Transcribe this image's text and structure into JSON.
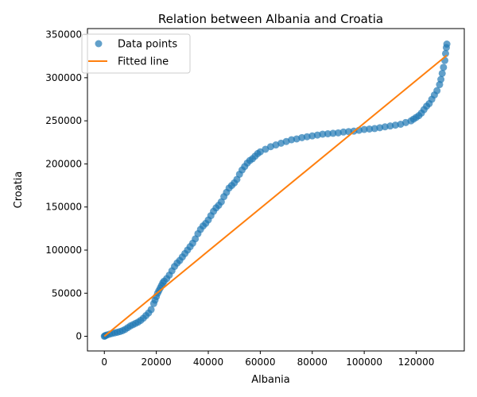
{
  "chart_data": {
    "type": "scatter",
    "title": "Relation between Albania and Croatia",
    "xlabel": "Albania",
    "ylabel": "Croatia",
    "xlim": [
      -6500,
      138500
    ],
    "ylim": [
      -17000,
      357000
    ],
    "x_ticks": [
      0,
      20000,
      40000,
      60000,
      80000,
      100000,
      120000
    ],
    "y_ticks": [
      0,
      50000,
      100000,
      150000,
      200000,
      250000,
      300000,
      350000
    ],
    "legend": {
      "placement": "top-left"
    },
    "grid": false,
    "series": [
      {
        "name": "Data points",
        "kind": "scatter",
        "color": "#1f77b4",
        "points": [
          [
            0,
            0
          ],
          [
            200,
            500
          ],
          [
            500,
            1000
          ],
          [
            1000,
            1500
          ],
          [
            2000,
            2500
          ],
          [
            3000,
            3300
          ],
          [
            4000,
            4000
          ],
          [
            5000,
            4700
          ],
          [
            6000,
            5500
          ],
          [
            7000,
            6500
          ],
          [
            8000,
            8000
          ],
          [
            9000,
            10000
          ],
          [
            10000,
            12000
          ],
          [
            11000,
            13500
          ],
          [
            12000,
            15000
          ],
          [
            13000,
            16500
          ],
          [
            14000,
            18500
          ],
          [
            15000,
            21000
          ],
          [
            16000,
            24000
          ],
          [
            17000,
            27000
          ],
          [
            18000,
            31000
          ],
          [
            19000,
            38000
          ],
          [
            19500,
            42000
          ],
          [
            20000,
            46000
          ],
          [
            20500,
            50000
          ],
          [
            21000,
            53000
          ],
          [
            21500,
            56000
          ],
          [
            22000,
            59000
          ],
          [
            22500,
            62000
          ],
          [
            23000,
            64000
          ],
          [
            24000,
            67000
          ],
          [
            25000,
            71000
          ],
          [
            26000,
            76000
          ],
          [
            27000,
            81000
          ],
          [
            28000,
            85000
          ],
          [
            29000,
            88000
          ],
          [
            30000,
            92000
          ],
          [
            31000,
            96000
          ],
          [
            32000,
            100000
          ],
          [
            33000,
            104000
          ],
          [
            34000,
            108000
          ],
          [
            35000,
            113000
          ],
          [
            36000,
            119000
          ],
          [
            37000,
            124000
          ],
          [
            38000,
            128000
          ],
          [
            39000,
            131000
          ],
          [
            40000,
            135000
          ],
          [
            41000,
            140000
          ],
          [
            42000,
            145000
          ],
          [
            43000,
            149000
          ],
          [
            44000,
            152000
          ],
          [
            45000,
            156000
          ],
          [
            46000,
            162000
          ],
          [
            47000,
            167000
          ],
          [
            48000,
            172000
          ],
          [
            49000,
            175000
          ],
          [
            50000,
            178000
          ],
          [
            51000,
            182000
          ],
          [
            52000,
            188000
          ],
          [
            53000,
            193000
          ],
          [
            54000,
            197000
          ],
          [
            55000,
            201000
          ],
          [
            56000,
            204000
          ],
          [
            57000,
            206000
          ],
          [
            58000,
            209000
          ],
          [
            59000,
            212000
          ],
          [
            60000,
            214000
          ],
          [
            62000,
            217000
          ],
          [
            64000,
            220000
          ],
          [
            66000,
            222000
          ],
          [
            68000,
            224000
          ],
          [
            70000,
            226000
          ],
          [
            72000,
            228000
          ],
          [
            74000,
            229000
          ],
          [
            76000,
            230500
          ],
          [
            78000,
            231500
          ],
          [
            80000,
            232500
          ],
          [
            82000,
            233500
          ],
          [
            84000,
            234500
          ],
          [
            86000,
            235000
          ],
          [
            88000,
            235500
          ],
          [
            90000,
            236000
          ],
          [
            92000,
            237000
          ],
          [
            94000,
            237500
          ],
          [
            96000,
            238000
          ],
          [
            98000,
            239000
          ],
          [
            100000,
            240000
          ],
          [
            102000,
            240500
          ],
          [
            104000,
            241000
          ],
          [
            106000,
            242000
          ],
          [
            108000,
            243000
          ],
          [
            110000,
            244000
          ],
          [
            112000,
            245000
          ],
          [
            114000,
            246000
          ],
          [
            116000,
            248000
          ],
          [
            118000,
            250000
          ],
          [
            119000,
            252000
          ],
          [
            120000,
            254000
          ],
          [
            121000,
            256000
          ],
          [
            122000,
            259000
          ],
          [
            123000,
            263000
          ],
          [
            124000,
            267000
          ],
          [
            125000,
            270000
          ],
          [
            126000,
            275000
          ],
          [
            127000,
            280000
          ],
          [
            128000,
            285000
          ],
          [
            129000,
            292000
          ],
          [
            129500,
            298000
          ],
          [
            130000,
            305000
          ],
          [
            130500,
            312000
          ],
          [
            131000,
            320000
          ],
          [
            131300,
            328000
          ],
          [
            131600,
            335000
          ],
          [
            131800,
            339000
          ]
        ]
      },
      {
        "name": "Fitted line",
        "kind": "line",
        "color": "#ff7f0e",
        "points": [
          [
            0,
            0
          ],
          [
            131800,
            326000
          ]
        ]
      }
    ]
  }
}
